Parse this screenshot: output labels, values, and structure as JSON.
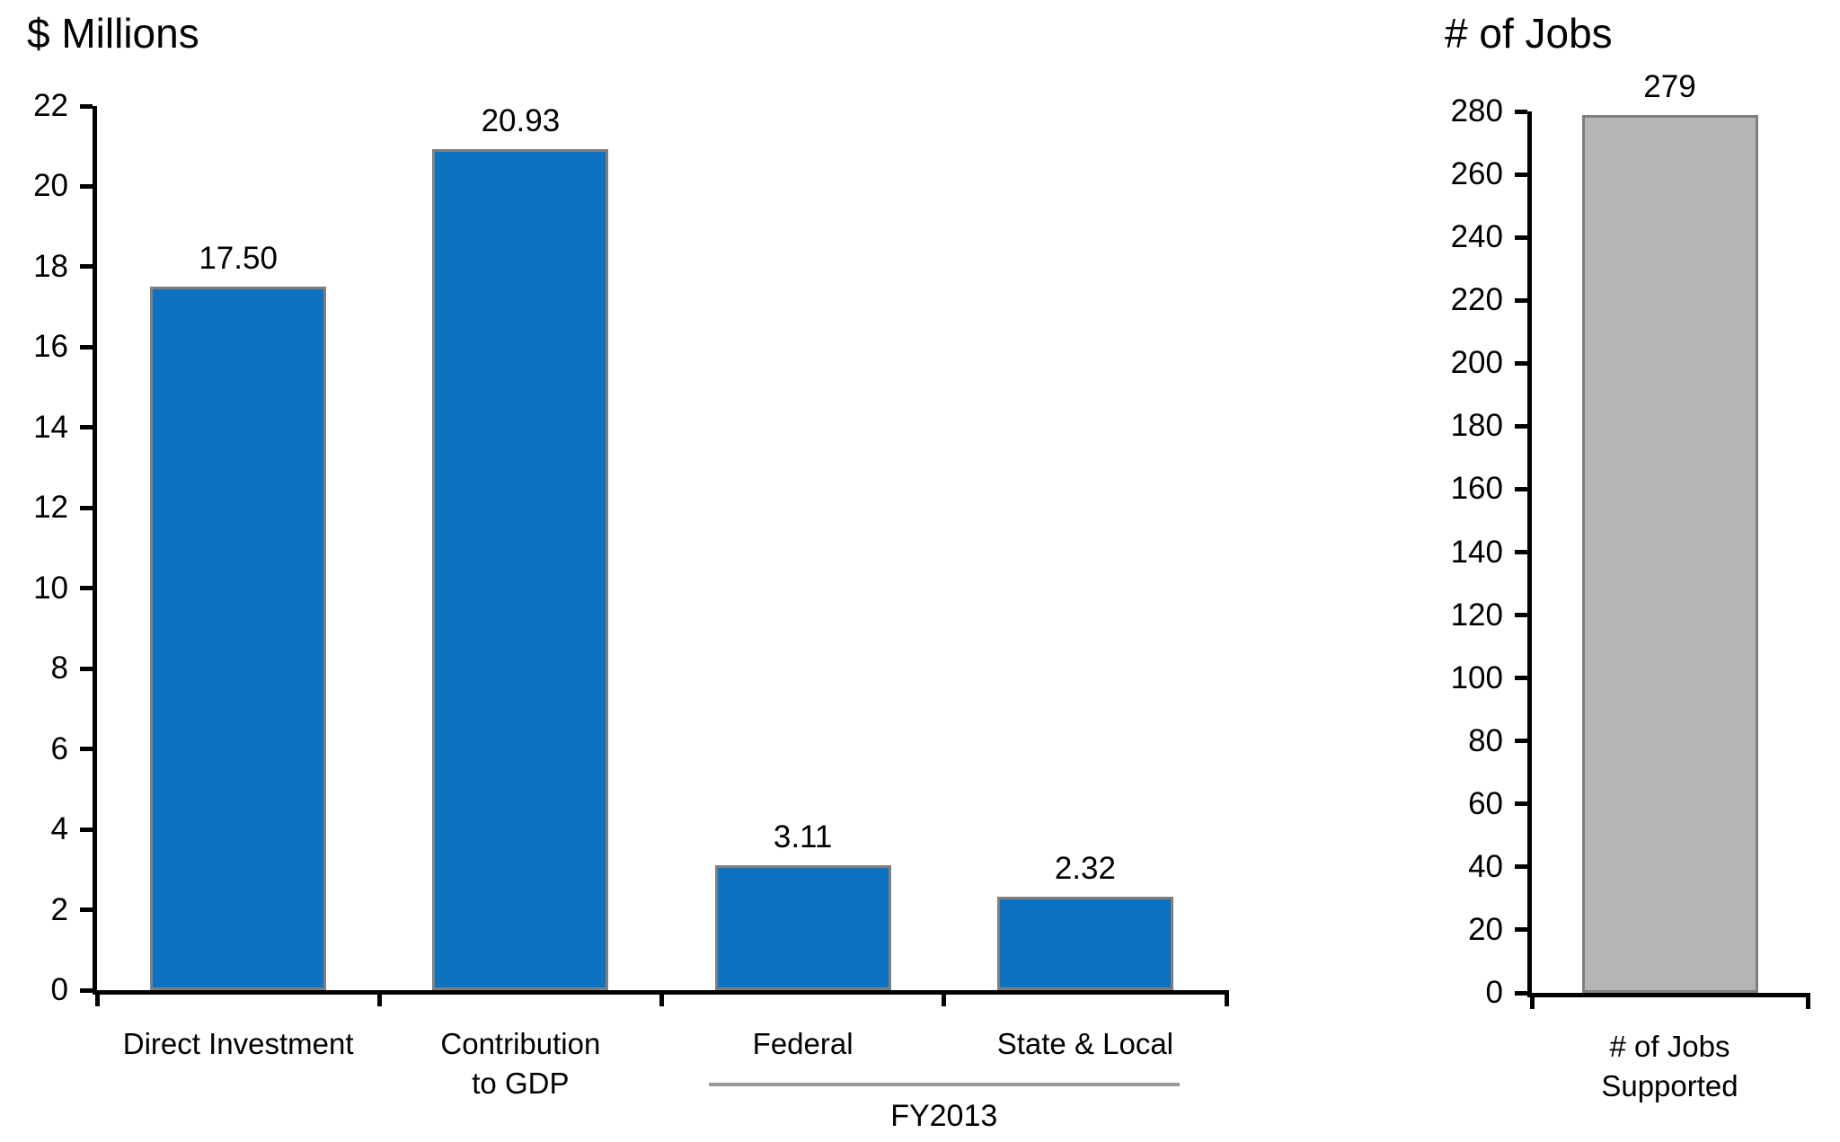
{
  "figure": {
    "background": "#ffffff",
    "text_color": "#000000"
  },
  "chart_data": [
    {
      "type": "bar",
      "title": "$ Millions",
      "categories": [
        "Direct Investment",
        "Contribution\nto GDP",
        "Federal",
        "State & Local"
      ],
      "values": [
        17.5,
        20.93,
        3.11,
        2.32
      ],
      "data_labels": [
        "17.50",
        "20.93",
        "3.11",
        "2.32"
      ],
      "xlabel": "",
      "ylabel": "$ Millions",
      "ylim": [
        0,
        22
      ],
      "yticks": [
        0,
        2,
        4,
        6,
        8,
        10,
        12,
        14,
        16,
        18,
        20,
        22
      ],
      "grid": false,
      "legend": "none",
      "bar_color": "#0d72bf",
      "bar_border_color": "#7f7f7f",
      "group_annotation": {
        "label": "FY2013",
        "from_index": 2,
        "to_index": 3,
        "line_color": "#999999"
      }
    },
    {
      "type": "bar",
      "title": "# of Jobs",
      "categories": [
        "# of Jobs\nSupported"
      ],
      "values": [
        279
      ],
      "data_labels": [
        "279"
      ],
      "xlabel": "",
      "ylabel": "# of Jobs",
      "ylim": [
        0,
        280
      ],
      "yticks": [
        0,
        20,
        40,
        60,
        80,
        100,
        120,
        140,
        160,
        180,
        200,
        220,
        240,
        260,
        280
      ],
      "grid": false,
      "legend": "none",
      "bar_color": "#b5b5b5",
      "bar_border_color": "#7f7f7f"
    }
  ]
}
